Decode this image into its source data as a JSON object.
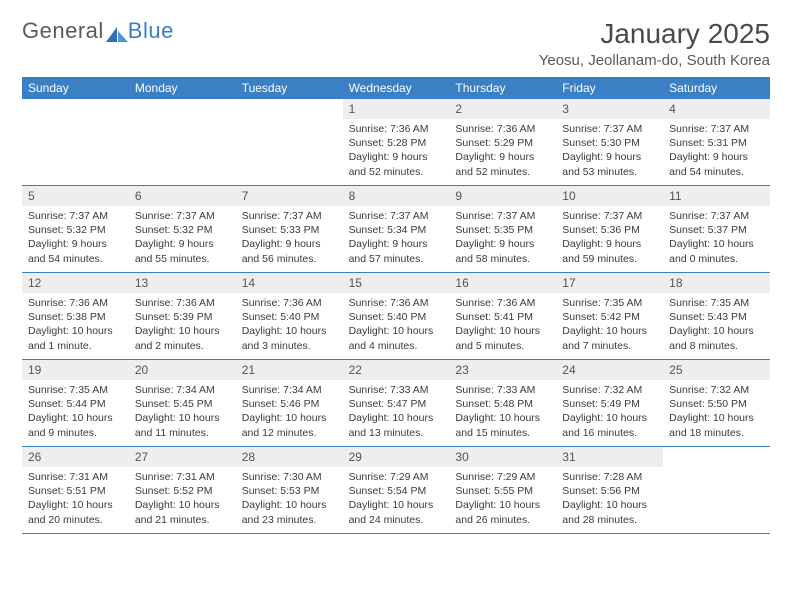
{
  "logo": {
    "part1": "General",
    "part2": "Blue"
  },
  "title": "January 2025",
  "location": "Yeosu, Jeollanam-do, South Korea",
  "colors": {
    "header_bg": "#3b7fc4",
    "header_text": "#ffffff",
    "daybar_bg": "#eeeeee",
    "text": "#3b3b3b",
    "divider": "#3b7fc4",
    "page_bg": "#ffffff"
  },
  "typography": {
    "title_fontsize": 28,
    "location_fontsize": 15,
    "weekday_fontsize": 12,
    "daynum_fontsize": 12,
    "body_fontsize": 10.5
  },
  "weekdays": [
    "Sunday",
    "Monday",
    "Tuesday",
    "Wednesday",
    "Thursday",
    "Friday",
    "Saturday"
  ],
  "weeks": [
    [
      null,
      null,
      null,
      {
        "n": "1",
        "sr": "7:36 AM",
        "ss": "5:28 PM",
        "dl": "9 hours and 52 minutes."
      },
      {
        "n": "2",
        "sr": "7:36 AM",
        "ss": "5:29 PM",
        "dl": "9 hours and 52 minutes."
      },
      {
        "n": "3",
        "sr": "7:37 AM",
        "ss": "5:30 PM",
        "dl": "9 hours and 53 minutes."
      },
      {
        "n": "4",
        "sr": "7:37 AM",
        "ss": "5:31 PM",
        "dl": "9 hours and 54 minutes."
      }
    ],
    [
      {
        "n": "5",
        "sr": "7:37 AM",
        "ss": "5:32 PM",
        "dl": "9 hours and 54 minutes."
      },
      {
        "n": "6",
        "sr": "7:37 AM",
        "ss": "5:32 PM",
        "dl": "9 hours and 55 minutes."
      },
      {
        "n": "7",
        "sr": "7:37 AM",
        "ss": "5:33 PM",
        "dl": "9 hours and 56 minutes."
      },
      {
        "n": "8",
        "sr": "7:37 AM",
        "ss": "5:34 PM",
        "dl": "9 hours and 57 minutes."
      },
      {
        "n": "9",
        "sr": "7:37 AM",
        "ss": "5:35 PM",
        "dl": "9 hours and 58 minutes."
      },
      {
        "n": "10",
        "sr": "7:37 AM",
        "ss": "5:36 PM",
        "dl": "9 hours and 59 minutes."
      },
      {
        "n": "11",
        "sr": "7:37 AM",
        "ss": "5:37 PM",
        "dl": "10 hours and 0 minutes."
      }
    ],
    [
      {
        "n": "12",
        "sr": "7:36 AM",
        "ss": "5:38 PM",
        "dl": "10 hours and 1 minute."
      },
      {
        "n": "13",
        "sr": "7:36 AM",
        "ss": "5:39 PM",
        "dl": "10 hours and 2 minutes."
      },
      {
        "n": "14",
        "sr": "7:36 AM",
        "ss": "5:40 PM",
        "dl": "10 hours and 3 minutes."
      },
      {
        "n": "15",
        "sr": "7:36 AM",
        "ss": "5:40 PM",
        "dl": "10 hours and 4 minutes."
      },
      {
        "n": "16",
        "sr": "7:36 AM",
        "ss": "5:41 PM",
        "dl": "10 hours and 5 minutes."
      },
      {
        "n": "17",
        "sr": "7:35 AM",
        "ss": "5:42 PM",
        "dl": "10 hours and 7 minutes."
      },
      {
        "n": "18",
        "sr": "7:35 AM",
        "ss": "5:43 PM",
        "dl": "10 hours and 8 minutes."
      }
    ],
    [
      {
        "n": "19",
        "sr": "7:35 AM",
        "ss": "5:44 PM",
        "dl": "10 hours and 9 minutes."
      },
      {
        "n": "20",
        "sr": "7:34 AM",
        "ss": "5:45 PM",
        "dl": "10 hours and 11 minutes."
      },
      {
        "n": "21",
        "sr": "7:34 AM",
        "ss": "5:46 PM",
        "dl": "10 hours and 12 minutes."
      },
      {
        "n": "22",
        "sr": "7:33 AM",
        "ss": "5:47 PM",
        "dl": "10 hours and 13 minutes."
      },
      {
        "n": "23",
        "sr": "7:33 AM",
        "ss": "5:48 PM",
        "dl": "10 hours and 15 minutes."
      },
      {
        "n": "24",
        "sr": "7:32 AM",
        "ss": "5:49 PM",
        "dl": "10 hours and 16 minutes."
      },
      {
        "n": "25",
        "sr": "7:32 AM",
        "ss": "5:50 PM",
        "dl": "10 hours and 18 minutes."
      }
    ],
    [
      {
        "n": "26",
        "sr": "7:31 AM",
        "ss": "5:51 PM",
        "dl": "10 hours and 20 minutes."
      },
      {
        "n": "27",
        "sr": "7:31 AM",
        "ss": "5:52 PM",
        "dl": "10 hours and 21 minutes."
      },
      {
        "n": "28",
        "sr": "7:30 AM",
        "ss": "5:53 PM",
        "dl": "10 hours and 23 minutes."
      },
      {
        "n": "29",
        "sr": "7:29 AM",
        "ss": "5:54 PM",
        "dl": "10 hours and 24 minutes."
      },
      {
        "n": "30",
        "sr": "7:29 AM",
        "ss": "5:55 PM",
        "dl": "10 hours and 26 minutes."
      },
      {
        "n": "31",
        "sr": "7:28 AM",
        "ss": "5:56 PM",
        "dl": "10 hours and 28 minutes."
      },
      null
    ]
  ],
  "labels": {
    "sunrise": "Sunrise:",
    "sunset": "Sunset:",
    "daylight": "Daylight:"
  }
}
